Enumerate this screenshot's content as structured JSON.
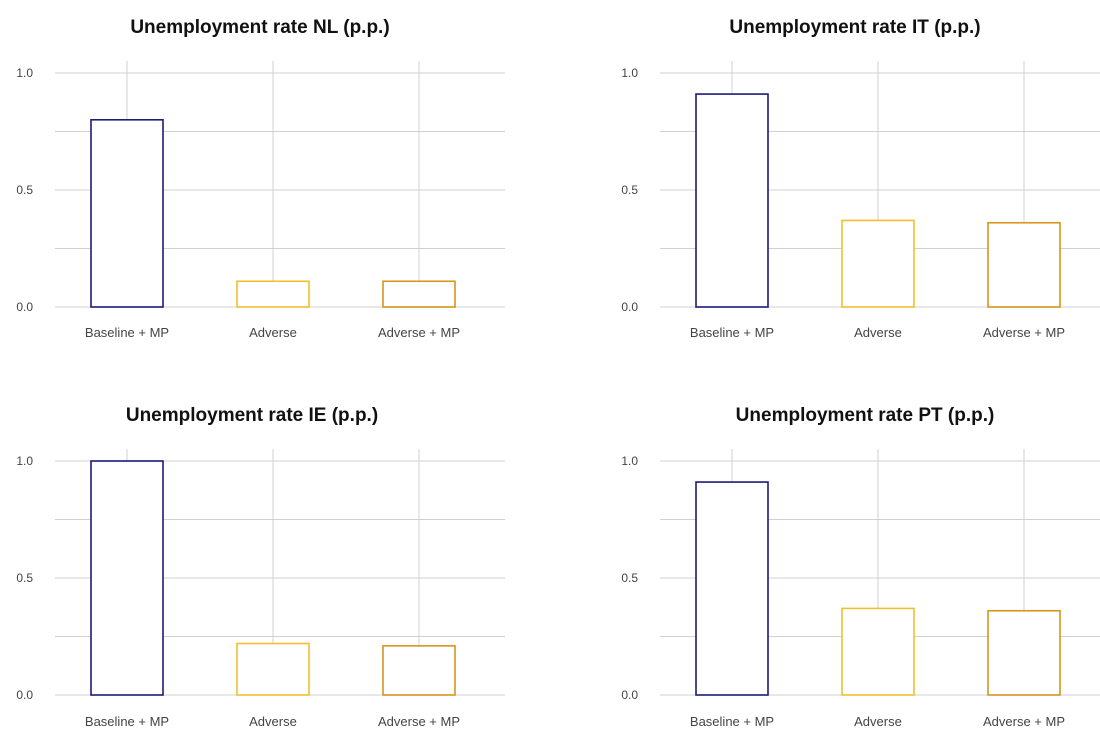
{
  "colors": {
    "baseline_mp": "#1a1a7a",
    "adverse": "#f0c030",
    "adverse_mp": "#d9941a",
    "grid": "#d0d0d0"
  },
  "chart_data": [
    {
      "type": "bar",
      "title": "Unemployment rate NL (p.p.)",
      "categories": [
        "Baseline + MP",
        "Adverse",
        "Adverse + MP"
      ],
      "values": [
        0.8,
        0.11,
        0.11
      ],
      "ylim": [
        0,
        1.0
      ],
      "yticks": [
        "0.0",
        "0.5",
        "1.0"
      ],
      "grid": true
    },
    {
      "type": "bar",
      "title": "Unemployment rate IT (p.p.)",
      "categories": [
        "Baseline + MP",
        "Adverse",
        "Adverse + MP"
      ],
      "values": [
        0.91,
        0.37,
        0.36
      ],
      "ylim": [
        0,
        1.0
      ],
      "yticks": [
        "0.0",
        "0.5",
        "1.0"
      ],
      "grid": true
    },
    {
      "type": "bar",
      "title": "Unemployment rate IE (p.p.)",
      "categories": [
        "Baseline + MP",
        "Adverse",
        "Adverse + MP"
      ],
      "values": [
        1.0,
        0.22,
        0.21
      ],
      "ylim": [
        0,
        1.0
      ],
      "yticks": [
        "0.0",
        "0.5",
        "1.0"
      ],
      "grid": true
    },
    {
      "type": "bar",
      "title": "Unemployment rate PT (p.p.)",
      "categories": [
        "Baseline + MP",
        "Adverse",
        "Adverse + MP"
      ],
      "values": [
        0.91,
        0.37,
        0.36
      ],
      "ylim": [
        0,
        1.0
      ],
      "yticks": [
        "0.0",
        "0.5",
        "1.0"
      ],
      "grid": true
    }
  ]
}
